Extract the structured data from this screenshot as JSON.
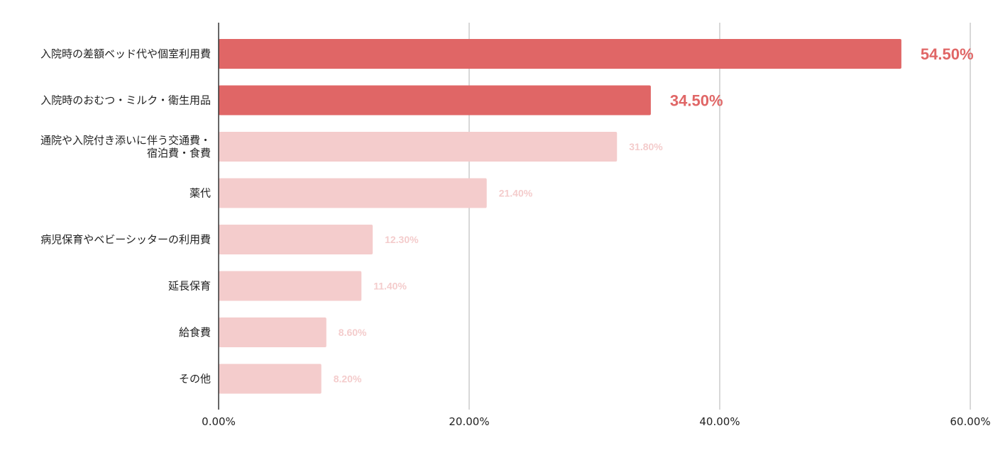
{
  "chart_data": {
    "type": "bar",
    "orientation": "horizontal",
    "categories": [
      [
        "入院時の差額ベッド代や個室利用費"
      ],
      [
        "入院時のおむつ・ミルク・衛生用品"
      ],
      [
        "通院や入院付き添いに伴う交通費・",
        "宿泊費・食費"
      ],
      [
        "薬代"
      ],
      [
        "病児保育やベビーシッターの利用費"
      ],
      [
        "延長保育"
      ],
      [
        "給食費"
      ],
      [
        "その他"
      ]
    ],
    "values": [
      54.5,
      34.5,
      31.8,
      21.4,
      12.3,
      11.4,
      8.6,
      8.2
    ],
    "value_labels": [
      "54.50%",
      "34.50%",
      "31.80%",
      "21.40%",
      "12.30%",
      "11.40%",
      "8.60%",
      "8.20%"
    ],
    "highlighted": [
      true,
      true,
      false,
      false,
      false,
      false,
      false,
      false
    ],
    "xlim": [
      0,
      60
    ],
    "x_ticks": [
      0,
      20,
      40,
      60
    ],
    "x_tick_labels": [
      "0.00%",
      "20.00%",
      "40.00%",
      "60.00%"
    ],
    "grid": true,
    "title": "",
    "xlabel": "",
    "ylabel": ""
  },
  "colors": {
    "highlight_bar": "#e06666",
    "normal_bar": "#f4cccc",
    "highlight_label": "#e06666",
    "normal_label": "#f4cccc",
    "grid": "#cccccc",
    "axis": "#333333"
  }
}
